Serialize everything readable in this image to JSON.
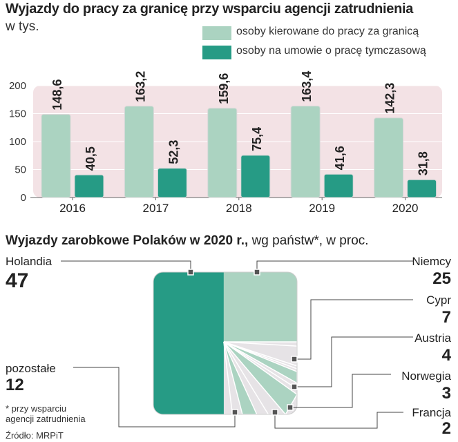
{
  "bar_title": "Wyjazdy do pracy za granicę przy wsparciu agencji zatrudnienia",
  "bar_unit": "w tys.",
  "colors": {
    "light": "#abd3c1",
    "dark": "#269b85",
    "band": "#f3e2e5",
    "other": "#e6e3e6",
    "line": "#444444"
  },
  "pie_title_bold": "Wyjazdy zarobkowe Polaków  w 2020 r.,",
  "pie_title_rest": " wg państw*, w proc.",
  "footnote": {
    "line1": "* przy wsparciu",
    "line2": "agencji zatrudnienia",
    "source": "Źródło: MRPiT"
  },
  "chart_data": [
    {
      "type": "bar",
      "title": "Wyjazdy do pracy za granicę przy wsparciu agencji zatrudnienia",
      "ylabel": "w tys.",
      "ylim": [
        0,
        200
      ],
      "yticks": [
        "0",
        "50",
        "100",
        "150",
        "200"
      ],
      "categories": [
        "2016",
        "2017",
        "2018",
        "2019",
        "2020"
      ],
      "series": [
        {
          "name": "osoby kierowane do pracy za granicą",
          "values": [
            148.6,
            163.2,
            159.6,
            163.4,
            142.3
          ],
          "labels": [
            "148,6",
            "163,2",
            "159,6",
            "163,4",
            "142,3"
          ]
        },
        {
          "name": "osoby na umowie o pracę tymczasową",
          "values": [
            40.5,
            52.3,
            75.4,
            41.6,
            31.8
          ],
          "labels": [
            "40,5",
            "52,3",
            "75,4",
            "41,6",
            "31,8"
          ]
        }
      ],
      "legend": "top-right"
    },
    {
      "type": "pie",
      "title": "Wyjazdy zarobkowe Polaków  w 2020 r., wg państw*, w proc.",
      "slices": [
        {
          "name": "Holandia",
          "value": 47,
          "label": "47"
        },
        {
          "name": "Niemcy",
          "value": 25,
          "label": "25"
        },
        {
          "name": "Cypr",
          "value": 7,
          "label": "7"
        },
        {
          "name": "Austria",
          "value": 4,
          "label": "4"
        },
        {
          "name": "Norwegia",
          "value": 3,
          "label": "3"
        },
        {
          "name": "Francja",
          "value": 2,
          "label": "2"
        },
        {
          "name": "pozostałe",
          "value": 12,
          "label": "12"
        }
      ]
    }
  ]
}
